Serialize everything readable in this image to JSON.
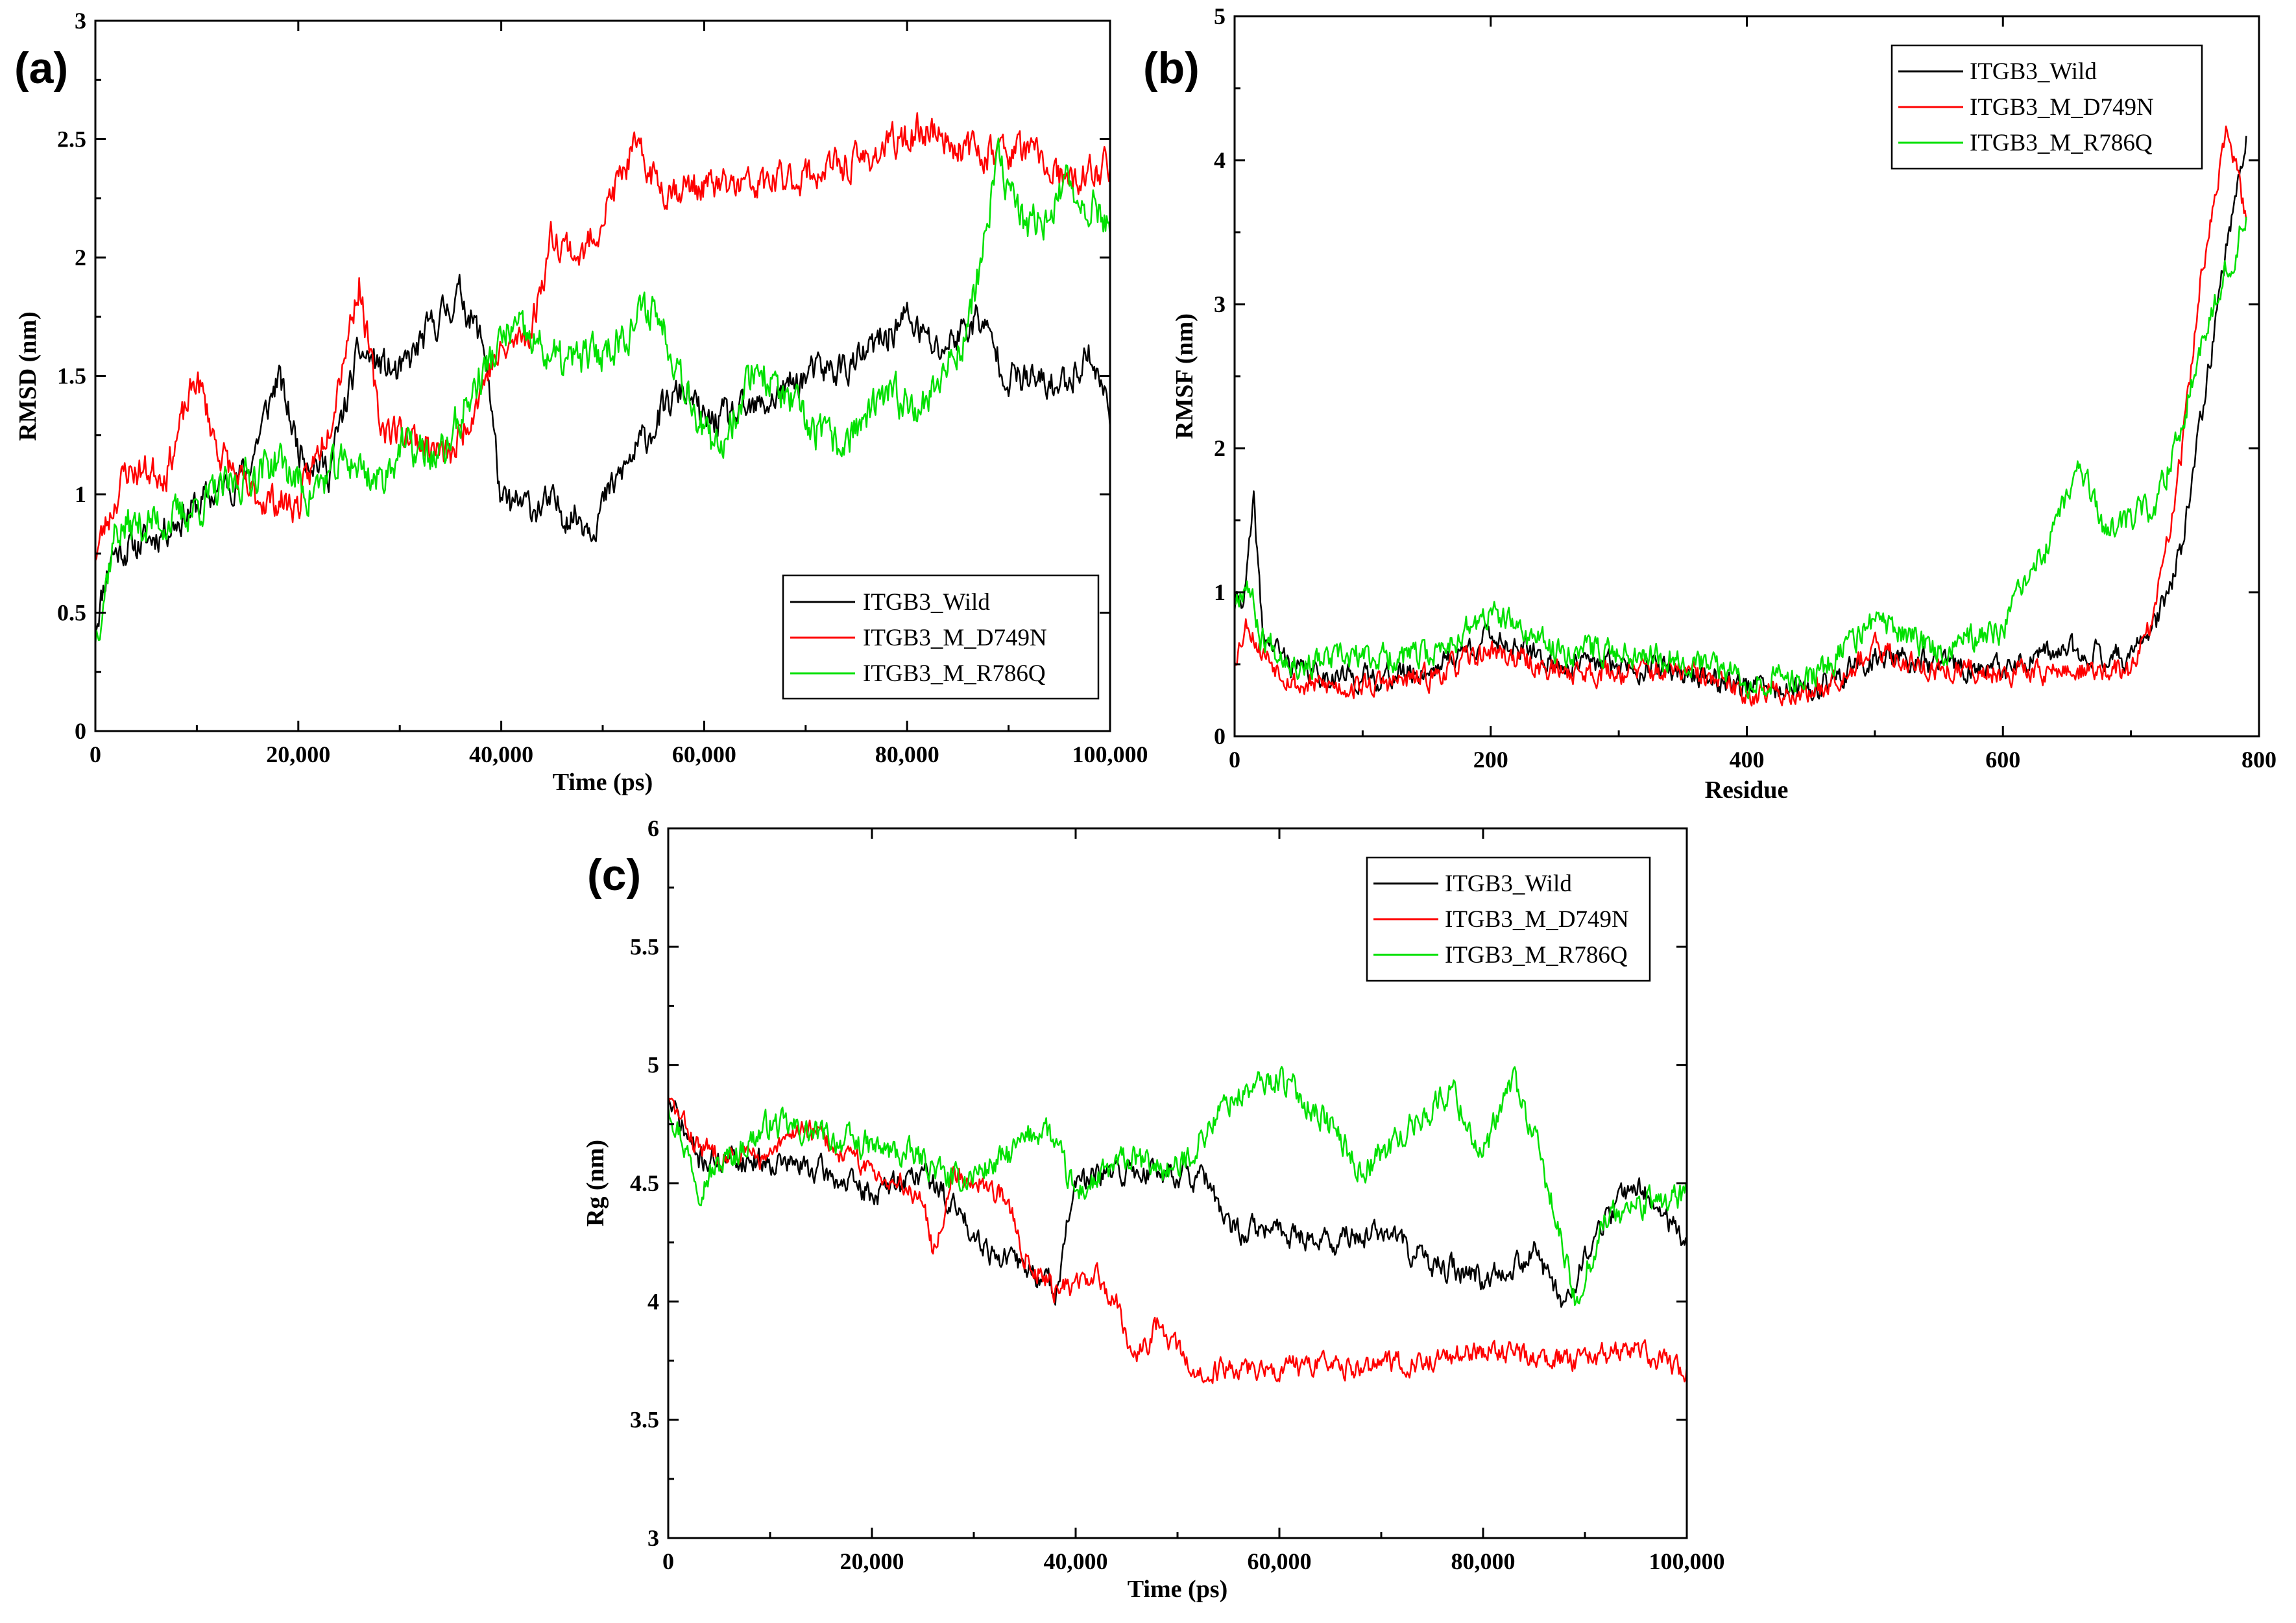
{
  "colors": {
    "wild": "#000000",
    "d749n": "#ff0000",
    "r786q": "#00e000"
  },
  "chart_data": [
    {
      "id": "a",
      "panel_label": "(a)",
      "type": "line",
      "xlabel": "Time (ps)",
      "ylabel": "RMSD (nm)",
      "xlim": [
        0,
        100000
      ],
      "ylim": [
        0,
        3
      ],
      "xticks": [
        0,
        20000,
        40000,
        60000,
        80000,
        100000
      ],
      "xtick_labels": [
        "0",
        "20,000",
        "40,000",
        "60,000",
        "80,000",
        "100,000"
      ],
      "yticks": [
        0,
        0.5,
        1,
        1.5,
        2,
        2.5,
        3
      ],
      "ytick_labels": [
        "0",
        "0.5",
        "1",
        "1.5",
        "2",
        "2.5",
        "3"
      ],
      "legend_position": "bottom-right",
      "series": [
        {
          "name": "ITGB3_Wild",
          "color_key": "wild",
          "noise": 0.06,
          "seed": 11,
          "points": [
            [
              0,
              0.45
            ],
            [
              1500,
              0.75
            ],
            [
              5000,
              0.8
            ],
            [
              10000,
              0.95
            ],
            [
              15000,
              1.1
            ],
            [
              18000,
              1.5
            ],
            [
              20000,
              1.2
            ],
            [
              23000,
              1.1
            ],
            [
              26000,
              1.6
            ],
            [
              30000,
              1.5
            ],
            [
              33000,
              1.7
            ],
            [
              36000,
              1.85
            ],
            [
              38500,
              1.6
            ],
            [
              40000,
              0.95
            ],
            [
              45000,
              0.95
            ],
            [
              49000,
              0.88
            ],
            [
              52000,
              1.1
            ],
            [
              56000,
              1.35
            ],
            [
              58000,
              1.45
            ],
            [
              60000,
              1.3
            ],
            [
              65000,
              1.35
            ],
            [
              70000,
              1.5
            ],
            [
              75000,
              1.55
            ],
            [
              80000,
              1.75
            ],
            [
              83000,
              1.6
            ],
            [
              87000,
              1.75
            ],
            [
              90000,
              1.5
            ],
            [
              95000,
              1.45
            ],
            [
              98000,
              1.6
            ],
            [
              100000,
              1.35
            ]
          ]
        },
        {
          "name": "ITGB3_M_D749N",
          "color_key": "d749n",
          "noise": 0.06,
          "seed": 23,
          "points": [
            [
              0,
              0.75
            ],
            [
              3000,
              1.1
            ],
            [
              7000,
              1.1
            ],
            [
              10000,
              1.5
            ],
            [
              12000,
              1.2
            ],
            [
              15000,
              1.0
            ],
            [
              20000,
              0.95
            ],
            [
              23000,
              1.3
            ],
            [
              26000,
              1.9
            ],
            [
              28000,
              1.3
            ],
            [
              31000,
              1.25
            ],
            [
              35000,
              1.15
            ],
            [
              39000,
              1.55
            ],
            [
              43000,
              1.7
            ],
            [
              45000,
              2.1
            ],
            [
              48000,
              2.0
            ],
            [
              53000,
              2.45
            ],
            [
              56000,
              2.3
            ],
            [
              65000,
              2.3
            ],
            [
              75000,
              2.4
            ],
            [
              82000,
              2.55
            ],
            [
              86000,
              2.45
            ],
            [
              92000,
              2.45
            ],
            [
              96000,
              2.3
            ],
            [
              100000,
              2.4
            ]
          ]
        },
        {
          "name": "ITGB3_M_R786Q",
          "color_key": "r786q",
          "noise": 0.07,
          "seed": 37,
          "points": [
            [
              0,
              0.4
            ],
            [
              2000,
              0.85
            ],
            [
              8000,
              0.9
            ],
            [
              12000,
              1.0
            ],
            [
              18000,
              1.15
            ],
            [
              21000,
              1.0
            ],
            [
              25000,
              1.15
            ],
            [
              28000,
              1.05
            ],
            [
              30000,
              1.2
            ],
            [
              34000,
              1.15
            ],
            [
              38000,
              1.5
            ],
            [
              41000,
              1.7
            ],
            [
              46000,
              1.55
            ],
            [
              50000,
              1.6
            ],
            [
              55000,
              1.8
            ],
            [
              58000,
              1.5
            ],
            [
              61000,
              1.15
            ],
            [
              65000,
              1.55
            ],
            [
              70000,
              1.3
            ],
            [
              73000,
              1.2
            ],
            [
              78000,
              1.4
            ],
            [
              82000,
              1.4
            ],
            [
              86000,
              1.7
            ],
            [
              89000,
              2.4
            ],
            [
              92000,
              2.1
            ],
            [
              96000,
              2.3
            ],
            [
              100000,
              2.15
            ]
          ]
        }
      ]
    },
    {
      "id": "b",
      "panel_label": "(b)",
      "type": "line",
      "xlabel": "Residue",
      "ylabel": "RMSF (nm)",
      "xlim": [
        0,
        800
      ],
      "ylim": [
        0,
        5
      ],
      "xticks": [
        0,
        200,
        400,
        600,
        800
      ],
      "xtick_labels": [
        "0",
        "200",
        "400",
        "600",
        "800"
      ],
      "yticks": [
        0,
        1,
        2,
        3,
        4,
        5
      ],
      "ytick_labels": [
        "0",
        "1",
        "2",
        "3",
        "4",
        "5"
      ],
      "legend_position": "top-right",
      "series": [
        {
          "name": "ITGB3_Wild",
          "color_key": "wild",
          "noise": 0.07,
          "seed": 41,
          "x_end": 790,
          "points": [
            [
              0,
              0.9
            ],
            [
              8,
              1.0
            ],
            [
              15,
              1.6
            ],
            [
              22,
              0.7
            ],
            [
              50,
              0.45
            ],
            [
              100,
              0.4
            ],
            [
              150,
              0.45
            ],
            [
              200,
              0.7
            ],
            [
              250,
              0.5
            ],
            [
              300,
              0.5
            ],
            [
              350,
              0.45
            ],
            [
              400,
              0.35
            ],
            [
              450,
              0.3
            ],
            [
              500,
              0.55
            ],
            [
              550,
              0.5
            ],
            [
              600,
              0.45
            ],
            [
              650,
              0.6
            ],
            [
              700,
              0.55
            ],
            [
              720,
              0.8
            ],
            [
              740,
              1.3
            ],
            [
              760,
              2.5
            ],
            [
              775,
              3.4
            ],
            [
              790,
              4.2
            ]
          ]
        },
        {
          "name": "ITGB3_M_D749N",
          "color_key": "d749n",
          "noise": 0.07,
          "seed": 53,
          "x_end": 790,
          "points": [
            [
              0,
              0.55
            ],
            [
              10,
              0.8
            ],
            [
              20,
              0.6
            ],
            [
              50,
              0.35
            ],
            [
              100,
              0.35
            ],
            [
              150,
              0.4
            ],
            [
              200,
              0.6
            ],
            [
              250,
              0.45
            ],
            [
              300,
              0.45
            ],
            [
              350,
              0.45
            ],
            [
              400,
              0.3
            ],
            [
              450,
              0.3
            ],
            [
              500,
              0.6
            ],
            [
              550,
              0.45
            ],
            [
              600,
              0.45
            ],
            [
              650,
              0.45
            ],
            [
              700,
              0.45
            ],
            [
              720,
              0.9
            ],
            [
              740,
              2.0
            ],
            [
              755,
              3.2
            ],
            [
              775,
              4.2
            ],
            [
              790,
              3.6
            ]
          ]
        },
        {
          "name": "ITGB3_M_R786Q",
          "color_key": "r786q",
          "noise": 0.08,
          "seed": 67,
          "x_end": 790,
          "points": [
            [
              0,
              0.95
            ],
            [
              10,
              1.1
            ],
            [
              20,
              0.7
            ],
            [
              50,
              0.5
            ],
            [
              100,
              0.55
            ],
            [
              150,
              0.55
            ],
            [
              200,
              0.85
            ],
            [
              250,
              0.6
            ],
            [
              300,
              0.6
            ],
            [
              350,
              0.55
            ],
            [
              400,
              0.4
            ],
            [
              450,
              0.4
            ],
            [
              500,
              0.8
            ],
            [
              550,
              0.6
            ],
            [
              600,
              0.75
            ],
            [
              640,
              1.4
            ],
            [
              660,
              1.9
            ],
            [
              680,
              1.4
            ],
            [
              700,
              1.5
            ],
            [
              720,
              1.6
            ],
            [
              740,
              2.2
            ],
            [
              760,
              2.9
            ],
            [
              790,
              3.6
            ]
          ]
        }
      ]
    },
    {
      "id": "c",
      "panel_label": "(c)",
      "type": "line",
      "xlabel": "Time (ps)",
      "ylabel": "Rg (nm)",
      "xlim": [
        0,
        100000
      ],
      "ylim": [
        3,
        6
      ],
      "xticks": [
        0,
        20000,
        40000,
        60000,
        80000,
        100000
      ],
      "xtick_labels": [
        "0",
        "20,000",
        "40,000",
        "60,000",
        "80,000",
        "100,000"
      ],
      "yticks": [
        3,
        3.5,
        4,
        4.5,
        5,
        5.5,
        6
      ],
      "ytick_labels": [
        "3",
        "3.5",
        "4",
        "4.5",
        "5",
        "5.5",
        "6"
      ],
      "legend_position": "top-right",
      "series": [
        {
          "name": "ITGB3_Wild",
          "color_key": "wild",
          "noise": 0.045,
          "seed": 71,
          "points": [
            [
              0,
              4.85
            ],
            [
              3000,
              4.6
            ],
            [
              10000,
              4.6
            ],
            [
              15000,
              4.55
            ],
            [
              20000,
              4.45
            ],
            [
              25000,
              4.55
            ],
            [
              28000,
              4.4
            ],
            [
              32000,
              4.2
            ],
            [
              35000,
              4.15
            ],
            [
              38000,
              4.05
            ],
            [
              40000,
              4.5
            ],
            [
              45000,
              4.55
            ],
            [
              50000,
              4.55
            ],
            [
              53000,
              4.5
            ],
            [
              55000,
              4.3
            ],
            [
              60000,
              4.3
            ],
            [
              65000,
              4.25
            ],
            [
              70000,
              4.3
            ],
            [
              75000,
              4.15
            ],
            [
              80000,
              4.1
            ],
            [
              85000,
              4.2
            ],
            [
              88000,
              4.0
            ],
            [
              92000,
              4.35
            ],
            [
              95000,
              4.5
            ],
            [
              100000,
              4.25
            ]
          ]
        },
        {
          "name": "ITGB3_M_D749N",
          "color_key": "d749n",
          "noise": 0.04,
          "seed": 83,
          "points": [
            [
              0,
              4.85
            ],
            [
              3000,
              4.65
            ],
            [
              10000,
              4.6
            ],
            [
              13000,
              4.75
            ],
            [
              18000,
              4.6
            ],
            [
              25000,
              4.45
            ],
            [
              26000,
              4.2
            ],
            [
              28000,
              4.55
            ],
            [
              33000,
              4.45
            ],
            [
              35000,
              4.2
            ],
            [
              38000,
              4.05
            ],
            [
              42000,
              4.1
            ],
            [
              44000,
              4.0
            ],
            [
              46000,
              3.75
            ],
            [
              48000,
              3.9
            ],
            [
              52000,
              3.68
            ],
            [
              55000,
              3.72
            ],
            [
              65000,
              3.72
            ],
            [
              75000,
              3.75
            ],
            [
              80000,
              3.8
            ],
            [
              85000,
              3.75
            ],
            [
              90000,
              3.75
            ],
            [
              95000,
              3.8
            ],
            [
              100000,
              3.7
            ]
          ]
        },
        {
          "name": "ITGB3_M_R786Q",
          "color_key": "r786q",
          "noise": 0.05,
          "seed": 97,
          "points": [
            [
              0,
              4.85
            ],
            [
              3000,
              4.5
            ],
            [
              10000,
              4.75
            ],
            [
              15000,
              4.7
            ],
            [
              20000,
              4.65
            ],
            [
              25000,
              4.6
            ],
            [
              28000,
              4.5
            ],
            [
              33000,
              4.6
            ],
            [
              37000,
              4.75
            ],
            [
              40000,
              4.45
            ],
            [
              45000,
              4.6
            ],
            [
              50000,
              4.55
            ],
            [
              55000,
              4.85
            ],
            [
              60000,
              4.95
            ],
            [
              65000,
              4.75
            ],
            [
              68000,
              4.55
            ],
            [
              72000,
              4.7
            ],
            [
              77000,
              4.9
            ],
            [
              80000,
              4.6
            ],
            [
              83000,
              4.95
            ],
            [
              86000,
              4.55
            ],
            [
              89000,
              4.0
            ],
            [
              92000,
              4.35
            ],
            [
              95000,
              4.4
            ],
            [
              100000,
              4.45
            ]
          ]
        }
      ]
    }
  ]
}
